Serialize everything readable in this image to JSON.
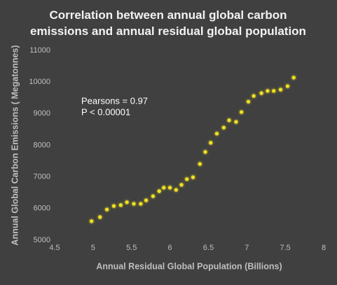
{
  "chart_data": {
    "type": "scatter",
    "title": "Correlation between annual global carbon emissions and annual residual global population",
    "x_label": "Annual Residual Global Population (Billions)",
    "y_label": "Annual Global Carbon Emissions ( Megatonnes)",
    "annotations": [
      "Pearsons = 0.97",
      "P < 0.00001"
    ],
    "color": "#f0e020",
    "x": [
      4.98,
      5.09,
      5.18,
      5.27,
      5.36,
      5.44,
      5.53,
      5.62,
      5.69,
      5.78,
      5.86,
      5.92,
      6.0,
      6.08,
      6.15,
      6.22,
      6.3,
      6.39,
      6.46,
      6.53,
      6.61,
      6.7,
      6.77,
      6.86,
      6.93,
      7.02,
      7.09,
      7.19,
      7.27,
      7.35,
      7.44,
      7.53,
      7.61
    ],
    "values": [
      5600,
      5730,
      5970,
      6080,
      6110,
      6200,
      6150,
      6150,
      6260,
      6390,
      6550,
      6660,
      6660,
      6590,
      6750,
      6930,
      6990,
      7410,
      7790,
      8080,
      8370,
      8560,
      8790,
      8740,
      9050,
      9380,
      9560,
      9650,
      9720,
      9720,
      9760,
      9870,
      10140
    ],
    "xlim": [
      4.5,
      8
    ],
    "xticks": [
      4.5,
      5,
      5.5,
      6,
      6.5,
      7,
      7.5,
      8
    ],
    "ylim": [
      5000,
      11000
    ],
    "yticks": [
      5000,
      6000,
      7000,
      8000,
      9000,
      10000,
      11000
    ],
    "grid": false
  }
}
